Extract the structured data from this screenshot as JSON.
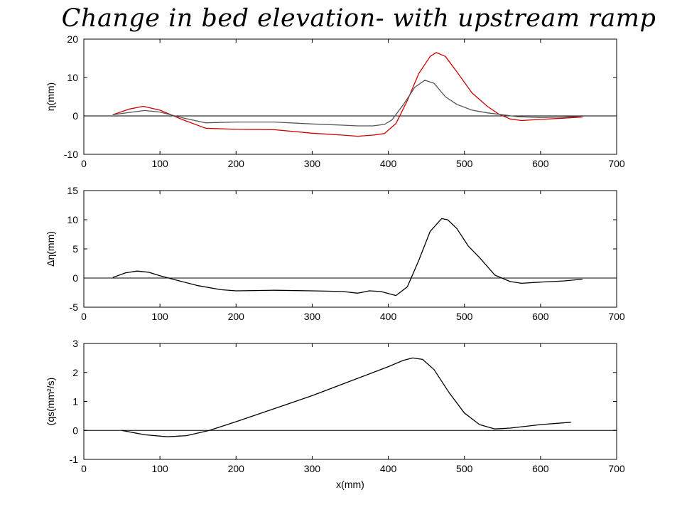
{
  "title": "Change in bed elevation- with upstream ramp",
  "chart_data": [
    {
      "type": "line",
      "ylabel": "η(mm)",
      "xlim": [
        0,
        700
      ],
      "ylim": [
        -10,
        20
      ],
      "xticks": [
        "0",
        "100",
        "200",
        "300",
        "400",
        "500",
        "600",
        "700"
      ],
      "yticks": [
        "-10",
        "0",
        "10",
        "20"
      ],
      "series": [
        {
          "color": "#cc0000",
          "x": [
            38,
            60,
            78,
            100,
            130,
            160,
            200,
            250,
            300,
            340,
            360,
            380,
            395,
            410,
            425,
            440,
            455,
            463,
            475,
            490,
            510,
            530,
            545,
            560,
            575,
            600,
            630,
            655
          ],
          "y": [
            0.3,
            1.8,
            2.5,
            1.5,
            -1.0,
            -3.2,
            -3.5,
            -3.6,
            -4.5,
            -5.0,
            -5.3,
            -5.0,
            -4.6,
            -2.0,
            4.0,
            11.0,
            15.5,
            16.5,
            15.5,
            11.5,
            6.0,
            2.5,
            0.5,
            -0.8,
            -1.2,
            -0.9,
            -0.6,
            -0.3
          ]
        },
        {
          "color": "#555555",
          "x": [
            38,
            60,
            80,
            100,
            130,
            160,
            200,
            250,
            300,
            340,
            360,
            380,
            395,
            405,
            420,
            435,
            448,
            460,
            475,
            490,
            510,
            530,
            550,
            570,
            600,
            630,
            655
          ],
          "y": [
            0.3,
            0.9,
            1.4,
            1.0,
            -0.5,
            -1.8,
            -1.6,
            -1.6,
            -2.1,
            -2.4,
            -2.6,
            -2.6,
            -2.2,
            -1.0,
            3.0,
            7.5,
            9.3,
            8.5,
            5.0,
            3.0,
            1.5,
            0.8,
            0.3,
            -0.2,
            -0.4,
            -0.3,
            -0.1
          ]
        }
      ]
    },
    {
      "type": "line",
      "ylabel": "Δη(mm)",
      "xlim": [
        0,
        700
      ],
      "ylim": [
        -5,
        15
      ],
      "xticks": [
        "0",
        "100",
        "200",
        "300",
        "400",
        "500",
        "600",
        "700"
      ],
      "yticks": [
        "-5",
        "0",
        "5",
        "10",
        "15"
      ],
      "series": [
        {
          "color": "#000000",
          "x": [
            38,
            55,
            70,
            85,
            100,
            120,
            150,
            180,
            200,
            250,
            300,
            340,
            360,
            375,
            390,
            410,
            425,
            440,
            455,
            470,
            478,
            490,
            505,
            520,
            540,
            560,
            575,
            600,
            630,
            655
          ],
          "y": [
            0.1,
            0.9,
            1.2,
            1.0,
            0.4,
            -0.3,
            -1.3,
            -2.0,
            -2.2,
            -2.1,
            -2.2,
            -2.3,
            -2.6,
            -2.2,
            -2.3,
            -3.0,
            -1.5,
            3.0,
            8.0,
            10.2,
            10.0,
            8.5,
            5.5,
            3.5,
            0.5,
            -0.6,
            -0.9,
            -0.7,
            -0.5,
            -0.2
          ]
        }
      ]
    },
    {
      "type": "line",
      "ylabel": "(qs(mm²/s)",
      "xlabel": "x(mm)",
      "xlim": [
        0,
        700
      ],
      "ylim": [
        -1,
        3
      ],
      "xticks": [
        "0",
        "100",
        "200",
        "300",
        "400",
        "500",
        "600",
        "700"
      ],
      "yticks": [
        "-1",
        "0",
        "1",
        "2",
        "3"
      ],
      "series": [
        {
          "color": "#000000",
          "x": [
            50,
            80,
            110,
            135,
            165,
            200,
            250,
            300,
            350,
            400,
            420,
            432,
            445,
            460,
            480,
            500,
            520,
            540,
            560,
            600,
            640
          ],
          "y": [
            0.0,
            -0.15,
            -0.22,
            -0.18,
            0.0,
            0.3,
            0.75,
            1.2,
            1.7,
            2.2,
            2.42,
            2.5,
            2.45,
            2.1,
            1.3,
            0.6,
            0.2,
            0.05,
            0.08,
            0.2,
            0.28
          ]
        }
      ]
    }
  ]
}
